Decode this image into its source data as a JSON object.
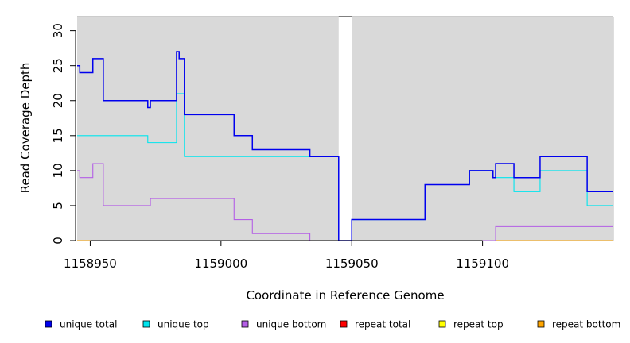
{
  "chart_data": {
    "type": "line",
    "step": true,
    "title": "",
    "xlabel": "Coordinate in Reference Genome",
    "ylabel": "Read Coverage Depth",
    "xlim": [
      1158945,
      1159150
    ],
    "ylim": [
      0,
      32
    ],
    "x_ticks": [
      1158950,
      1159000,
      1159050,
      1159100
    ],
    "y_ticks": [
      0,
      5,
      10,
      15,
      20,
      25,
      30
    ],
    "grid": false,
    "panel_background": "#d9d9d9",
    "gap_region": [
      1159045,
      1159050
    ],
    "legend_position": "bottom",
    "series": [
      {
        "name": "unique total",
        "color": "#0000ee",
        "points": [
          [
            1158945,
            25
          ],
          [
            1158946,
            24
          ],
          [
            1158951,
            26
          ],
          [
            1158955,
            20
          ],
          [
            1158972,
            19
          ],
          [
            1158973,
            20
          ],
          [
            1158983,
            27
          ],
          [
            1158984,
            26
          ],
          [
            1158986,
            18
          ],
          [
            1159005,
            15
          ],
          [
            1159012,
            13
          ],
          [
            1159034,
            12
          ],
          [
            1159045,
            0
          ],
          [
            1159050,
            3
          ],
          [
            1159078,
            8
          ],
          [
            1159095,
            10
          ],
          [
            1159104,
            9
          ],
          [
            1159105,
            11
          ],
          [
            1159112,
            9
          ],
          [
            1159122,
            12
          ],
          [
            1159140,
            7
          ],
          [
            1159150,
            7
          ]
        ]
      },
      {
        "name": "unique top",
        "color": "#00e5ee",
        "points": [
          [
            1158945,
            15
          ],
          [
            1158972,
            14
          ],
          [
            1158983,
            21
          ],
          [
            1158986,
            12
          ],
          [
            1159045,
            0
          ],
          [
            1159050,
            3
          ],
          [
            1159078,
            8
          ],
          [
            1159095,
            10
          ],
          [
            1159104,
            9
          ],
          [
            1159112,
            7
          ],
          [
            1159122,
            10
          ],
          [
            1159140,
            5
          ],
          [
            1159150,
            5
          ]
        ]
      },
      {
        "name": "unique bottom",
        "color": "#b45ee6",
        "points": [
          [
            1158945,
            10
          ],
          [
            1158946,
            9
          ],
          [
            1158951,
            11
          ],
          [
            1158955,
            5
          ],
          [
            1158973,
            6
          ],
          [
            1159005,
            3
          ],
          [
            1159012,
            1
          ],
          [
            1159034,
            0
          ],
          [
            1159105,
            2
          ],
          [
            1159150,
            2
          ]
        ]
      },
      {
        "name": "repeat total",
        "color": "#ff0000",
        "points": [
          [
            1158945,
            0
          ],
          [
            1159150,
            0
          ]
        ]
      },
      {
        "name": "repeat top",
        "color": "#ffff00",
        "points": [
          [
            1158945,
            0
          ],
          [
            1159150,
            0
          ]
        ]
      },
      {
        "name": "repeat bottom",
        "color": "#ffa500",
        "points": [
          [
            1158945,
            0
          ],
          [
            1159150,
            0
          ]
        ]
      }
    ]
  }
}
